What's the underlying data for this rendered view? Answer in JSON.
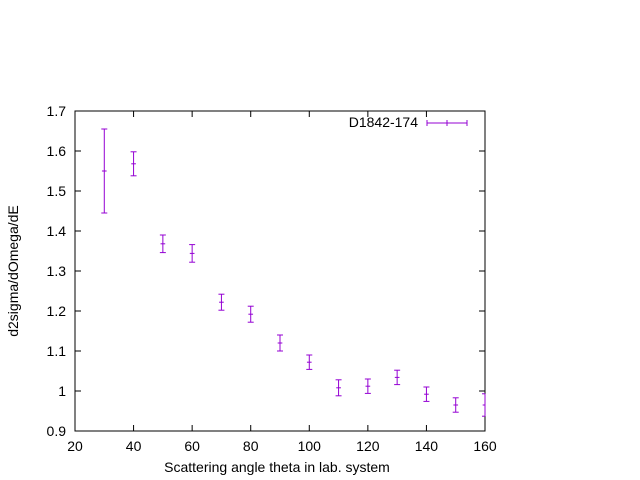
{
  "chart_data": {
    "type": "scatter",
    "xlabel": "Scattering angle theta in lab. system",
    "ylabel": "d2sigma/dOmega/dE",
    "xlim": [
      20,
      160
    ],
    "ylim": [
      0.9,
      1.7
    ],
    "xticks": [
      "20",
      "40",
      "60",
      "80",
      "100",
      "120",
      "140",
      "160"
    ],
    "yticks": [
      "0.9",
      "1",
      "1.1",
      "1.2",
      "1.3",
      "1.4",
      "1.5",
      "1.6",
      "1.7"
    ],
    "grid": false,
    "legend_position": "top-right",
    "series": [
      {
        "name": "D1842-174",
        "color": "#9400d3",
        "marker": "error-bar",
        "x": [
          30,
          40,
          50,
          60,
          70,
          80,
          90,
          100,
          110,
          120,
          130,
          140,
          150,
          160
        ],
        "y": [
          1.55,
          1.568,
          1.368,
          1.344,
          1.222,
          1.192,
          1.12,
          1.072,
          1.008,
          1.012,
          1.034,
          0.992,
          0.965,
          0.965
        ],
        "yerr": [
          0.105,
          0.03,
          0.022,
          0.022,
          0.02,
          0.02,
          0.02,
          0.018,
          0.02,
          0.018,
          0.018,
          0.018,
          0.018,
          0.028
        ],
        "xerr": [
          0.8,
          0.8,
          0.8,
          0.8,
          0.8,
          0.8,
          0.8,
          0.8,
          0.8,
          0.8,
          0.8,
          0.8,
          0.8,
          0.8
        ]
      }
    ]
  }
}
